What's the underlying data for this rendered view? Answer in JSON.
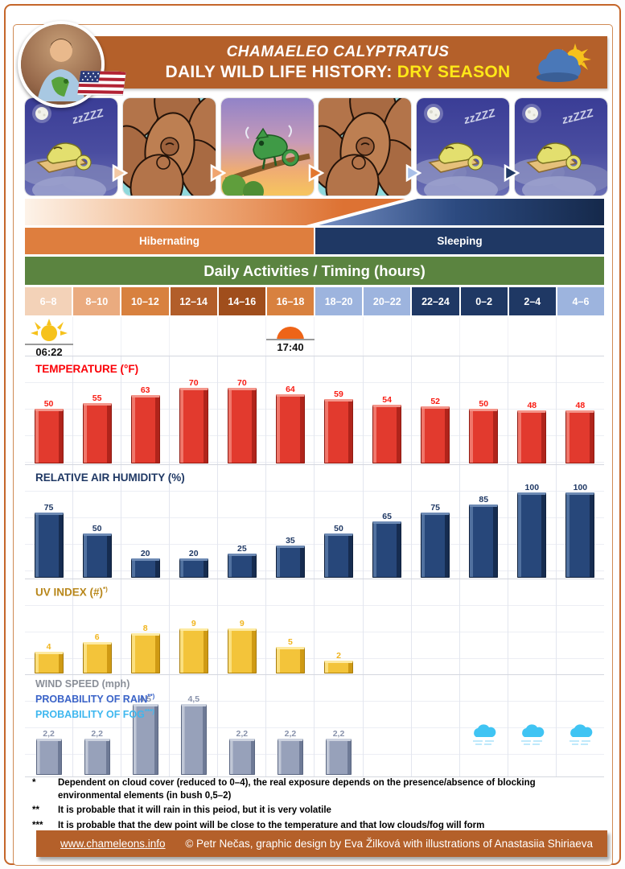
{
  "header": {
    "species_title": "CHAMAELEO CALYPTRATUS",
    "main_title": "DAILY WILD LIFE HISTORY: ",
    "season_highlight": "DRY SEASON",
    "brand_color": "#b4602a",
    "highlight_color": "#fee818"
  },
  "strip": {
    "cards": [
      {
        "scene": "sleeping-night"
      },
      {
        "scene": "hiding-foliage"
      },
      {
        "scene": "basking-branch"
      },
      {
        "scene": "hiding-foliage"
      },
      {
        "scene": "sleeping-night"
      },
      {
        "scene": "sleeping-night"
      }
    ],
    "arrow_colors": [
      "#f3c9a4",
      "#f0a570",
      "#e2772f",
      "#a9c0e8",
      "#1f3864"
    ]
  },
  "timeline": {
    "phases": [
      {
        "label": "Hibernating",
        "color": "#de7e3e"
      },
      {
        "label": "Sleeping",
        "color": "#1f3864"
      }
    ],
    "activities_title": "Daily Activities / Timing (hours)",
    "activities_bar_color": "#5b8440",
    "time_slots": [
      {
        "label": "6–8",
        "color": "#f3d2b8"
      },
      {
        "label": "8–10",
        "color": "#eaab7f"
      },
      {
        "label": "10–12",
        "color": "#d8813f"
      },
      {
        "label": "12–14",
        "color": "#b25e2a"
      },
      {
        "label": "14–16",
        "color": "#a04e1c"
      },
      {
        "label": "16–18",
        "color": "#d8813f"
      },
      {
        "label": "18–20",
        "color": "#9db4de"
      },
      {
        "label": "20–22",
        "color": "#9db4de"
      },
      {
        "label": "22–24",
        "color": "#1f3864"
      },
      {
        "label": "0–2",
        "color": "#1f3864"
      },
      {
        "label": "2–4",
        "color": "#1f3864"
      },
      {
        "label": "4–6",
        "color": "#9db4de"
      }
    ],
    "sunrise": {
      "time": "06:22",
      "column": 1
    },
    "sunset": {
      "time": "17:40",
      "column": 6
    }
  },
  "chart_data": [
    {
      "type": "bar",
      "title": "TEMPERATURE (°F)",
      "footnote_marker": "",
      "categories": [
        "6–8",
        "8–10",
        "10–12",
        "12–14",
        "14–16",
        "16–18",
        "18–20",
        "20–22",
        "22–24",
        "0–2",
        "2–4",
        "4–6"
      ],
      "values": [
        50,
        55,
        63,
        70,
        70,
        64,
        59,
        54,
        52,
        50,
        48,
        48
      ],
      "labels": [
        "50",
        "55",
        "63",
        "70",
        "70",
        "64",
        "59",
        "54",
        "52",
        "50",
        "48",
        "48"
      ],
      "ylim": [
        0,
        70
      ],
      "grid": true,
      "bar_color": "#e23a2e",
      "label_color": "#f81b12",
      "title_color": "#fb0007"
    },
    {
      "type": "bar",
      "title": "RELATIVE AIR HUMIDITY (%)",
      "footnote_marker": "",
      "categories": [
        "6–8",
        "8–10",
        "10–12",
        "12–14",
        "14–16",
        "16–18",
        "18–20",
        "20–22",
        "22–24",
        "0–2",
        "2–4",
        "4–6"
      ],
      "values": [
        75,
        50,
        20,
        20,
        25,
        35,
        50,
        65,
        75,
        85,
        100,
        100
      ],
      "labels": [
        "75",
        "50",
        "20",
        "20",
        "25",
        "35",
        "50",
        "65",
        "75",
        "85",
        "100",
        "100"
      ],
      "ylim": [
        0,
        100
      ],
      "grid": true,
      "bar_color": "#27477a",
      "label_color": "#1f3864",
      "title_color": "#1f3864"
    },
    {
      "type": "bar",
      "title": "UV INDEX (#)",
      "footnote_marker": "*)",
      "categories": [
        "6–8",
        "8–10",
        "10–12",
        "12–14",
        "14–16",
        "16–18",
        "18–20",
        "20–22",
        "22–24",
        "0–2",
        "2–4",
        "4–6"
      ],
      "values": [
        4,
        6,
        8,
        9,
        9,
        5,
        2,
        null,
        null,
        null,
        null,
        null
      ],
      "labels": [
        "4",
        "6",
        "8",
        "9",
        "9",
        "5",
        "2",
        null,
        null,
        null,
        null,
        null
      ],
      "ylim": [
        0,
        9
      ],
      "grid": true,
      "bar_color": "#f3c43a",
      "label_color": "#f1b51e",
      "title_color": "#b8871b"
    },
    {
      "type": "bar",
      "titles": [
        {
          "text": "WIND SPEED (mph)",
          "marker": "",
          "color": "#8a8f98"
        },
        {
          "text": "PROBABILITY OF RAIN",
          "marker": "**)",
          "color": "#3a63c8"
        },
        {
          "text": "PROBABILITY OF FOG",
          "marker": "***)",
          "color": "#3eb7ef"
        }
      ],
      "categories": [
        "6–8",
        "8–10",
        "10–12",
        "12–14",
        "14–16",
        "16–18",
        "18–20",
        "20–22",
        "22–24",
        "0–2",
        "2–4",
        "4–6"
      ],
      "values": [
        2.2,
        2.2,
        4.5,
        4.5,
        2.2,
        2.2,
        2.2,
        null,
        null,
        null,
        null,
        null
      ],
      "labels": [
        "2,2",
        "2,2",
        "4,5",
        "4,5",
        "2,2",
        "2,2",
        "2,2",
        null,
        null,
        null,
        null,
        null
      ],
      "ylim": [
        0,
        4.5
      ],
      "grid": true,
      "bar_color": "#97a1ba",
      "label_color": "#8892ab",
      "fog_icon_columns": [
        10,
        11,
        12
      ],
      "fog_icon_color": "#40c4f3"
    }
  ],
  "footnotes": [
    {
      "marker": "*",
      "text": "Dependent on cloud cover (reduced to 0–4), the real exposure depends on the presence/absence of blocking environmental elements (in bush 0,5–2)"
    },
    {
      "marker": "**",
      "text": "It is probable that it will rain in this peiod, but it is very volatile"
    },
    {
      "marker": "***",
      "text": "It is probable that the dew point will be close to the temperature and that low clouds/fog will form"
    }
  ],
  "footer": {
    "link": "www.chameleons.info",
    "credit": "© Petr Nečas, graphic design by Eva Žilková with illustrations of Anastasiia Shiriaeva"
  }
}
